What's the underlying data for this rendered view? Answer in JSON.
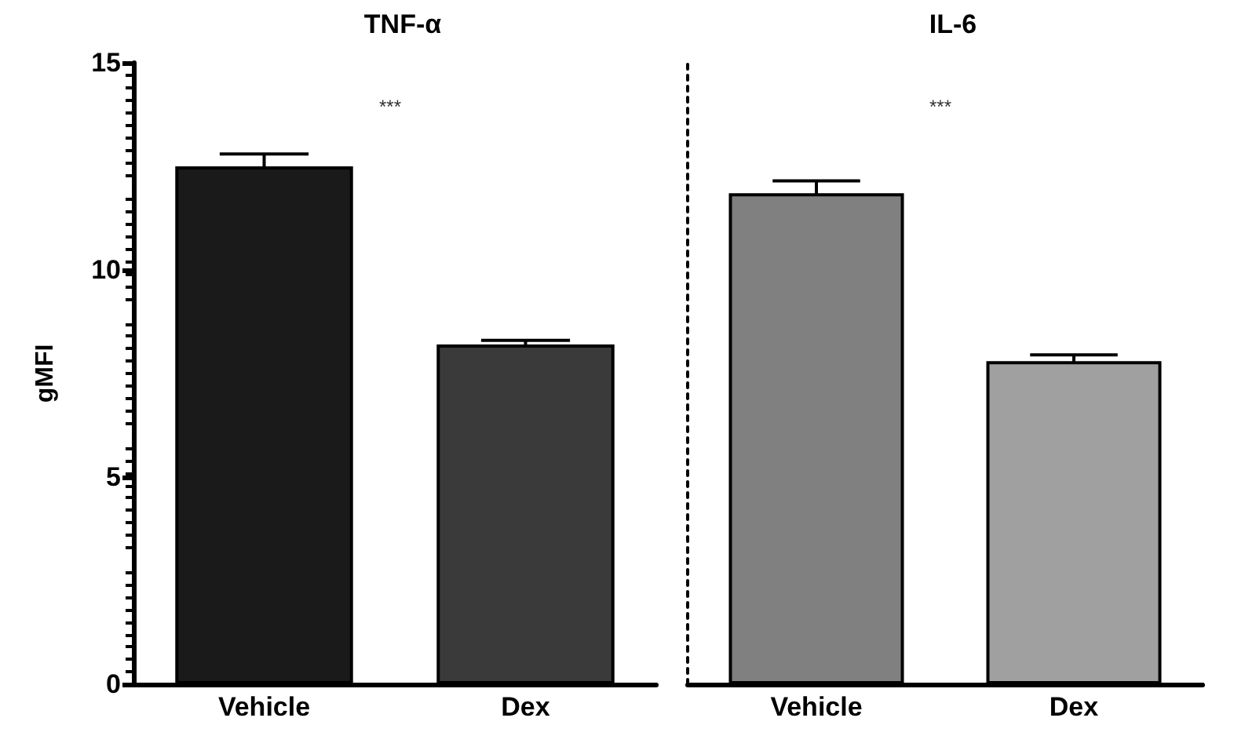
{
  "chart_data": [
    {
      "type": "bar",
      "title": "TNF-α",
      "ylabel": "gMFI",
      "categories": [
        "Vehicle",
        "Dex"
      ],
      "values": [
        12.5,
        8.2
      ],
      "errors": [
        0.3,
        0.1
      ],
      "colors": [
        "#1a1a1a",
        "#3a3a3a"
      ],
      "ylim": [
        0,
        15
      ],
      "yticks": [
        0,
        5,
        10,
        15
      ],
      "annotations": [
        "***"
      ],
      "grid": false
    },
    {
      "type": "bar",
      "title": "IL-6",
      "categories": [
        "Vehicle",
        "Dex"
      ],
      "values": [
        11.85,
        7.8
      ],
      "errors": [
        0.3,
        0.15
      ],
      "colors": [
        "#808080",
        "#a0a0a0"
      ],
      "ylim": [
        0,
        15
      ],
      "yticks": [
        0,
        5,
        10,
        15
      ],
      "annotations": [
        "***"
      ],
      "tick_labels": "x",
      "grid": false
    }
  ]
}
